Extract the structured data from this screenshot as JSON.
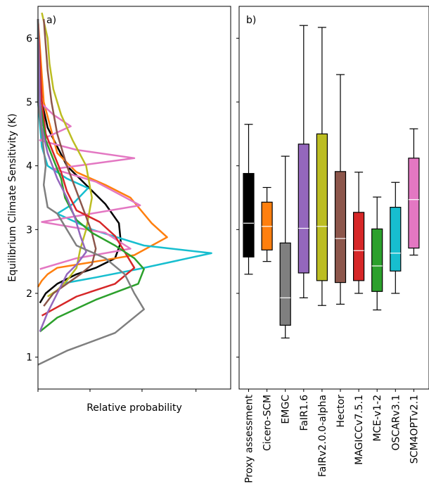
{
  "chart_data": [
    {
      "type": "line",
      "panel_label": "a)",
      "xlabel": "Relative probability",
      "ylabel": "Equilibrium Climate Sensitivity (K)",
      "ylim": [
        0.5,
        6.5
      ],
      "xlim": [
        0,
        1
      ],
      "y_ticks": [
        1,
        2,
        3,
        4,
        5,
        6
      ],
      "series": [
        {
          "color": "#000000",
          "points": [
            [
              0.0,
              6.3
            ],
            [
              0.02,
              5.0
            ],
            [
              0.05,
              4.6
            ],
            [
              0.1,
              4.3
            ],
            [
              0.15,
              4.0
            ],
            [
              0.25,
              3.7
            ],
            [
              0.35,
              3.4
            ],
            [
              0.42,
              3.1
            ],
            [
              0.43,
              2.8
            ],
            [
              0.4,
              2.55
            ],
            [
              0.3,
              2.4
            ],
            [
              0.2,
              2.3
            ],
            [
              0.1,
              2.15
            ],
            [
              0.04,
              2.0
            ],
            [
              0.01,
              1.85
            ]
          ]
        },
        {
          "color": "#ff7f0e",
          "points": [
            [
              0.0,
              6.3
            ],
            [
              0.03,
              5.0
            ],
            [
              0.1,
              4.2
            ],
            [
              0.2,
              3.9
            ],
            [
              0.35,
              3.7
            ],
            [
              0.48,
              3.5
            ],
            [
              0.59,
              3.1
            ],
            [
              0.67,
              2.88
            ],
            [
              0.5,
              2.6
            ],
            [
              0.3,
              2.5
            ],
            [
              0.1,
              2.4
            ],
            [
              0.05,
              2.3
            ],
            [
              0.02,
              2.2
            ],
            [
              0.0,
              2.1
            ]
          ]
        },
        {
          "color": "#17becf",
          "points": [
            [
              0.0,
              6.3
            ],
            [
              0.0,
              5.0
            ],
            [
              0.02,
              4.3
            ],
            [
              0.05,
              4.0
            ],
            [
              0.15,
              3.8
            ],
            [
              0.26,
              3.65
            ],
            [
              0.18,
              3.4
            ],
            [
              0.1,
              3.25
            ],
            [
              0.28,
              3.0
            ],
            [
              0.55,
              2.75
            ],
            [
              0.9,
              2.63
            ],
            [
              0.52,
              2.38
            ],
            [
              0.3,
              2.25
            ],
            [
              0.12,
              2.15
            ]
          ]
        },
        {
          "color": "#e377c2",
          "points": [
            [
              0.0,
              6.3
            ],
            [
              0.01,
              5.0
            ],
            [
              0.08,
              4.8
            ],
            [
              0.17,
              4.62
            ],
            [
              0.01,
              4.4
            ],
            [
              0.2,
              4.25
            ],
            [
              0.5,
              4.12
            ],
            [
              0.08,
              3.95
            ],
            [
              0.3,
              3.75
            ],
            [
              0.53,
              3.38
            ],
            [
              0.02,
              3.12
            ],
            [
              0.35,
              2.95
            ],
            [
              0.48,
              2.7
            ],
            [
              0.2,
              2.55
            ],
            [
              0.01,
              2.38
            ]
          ]
        },
        {
          "color": "#bcbd22",
          "points": [
            [
              0.02,
              6.4
            ],
            [
              0.05,
              6.0
            ],
            [
              0.06,
              5.6
            ],
            [
              0.08,
              5.2
            ],
            [
              0.12,
              4.8
            ],
            [
              0.18,
              4.4
            ],
            [
              0.25,
              4.0
            ],
            [
              0.28,
              3.5
            ],
            [
              0.25,
              3.0
            ],
            [
              0.22,
              2.7
            ],
            [
              0.2,
              2.4
            ],
            [
              0.15,
              2.2
            ],
            [
              0.1,
              2.05
            ],
            [
              0.05,
              1.95
            ]
          ]
        },
        {
          "color": "#8c564b",
          "points": [
            [
              0.03,
              6.3
            ],
            [
              0.05,
              5.5
            ],
            [
              0.07,
              5.0
            ],
            [
              0.1,
              4.5
            ],
            [
              0.15,
              4.0
            ],
            [
              0.2,
              3.6
            ],
            [
              0.25,
              3.2
            ],
            [
              0.28,
              2.95
            ],
            [
              0.3,
              2.7
            ],
            [
              0.28,
              2.45
            ],
            [
              0.22,
              2.3
            ],
            [
              0.15,
              2.15
            ],
            [
              0.08,
              2.0
            ],
            [
              0.03,
              1.8
            ]
          ]
        },
        {
          "color": "#d62728",
          "points": [
            [
              0.0,
              6.3
            ],
            [
              0.02,
              5.0
            ],
            [
              0.04,
              4.5
            ],
            [
              0.08,
              4.2
            ],
            [
              0.12,
              3.9
            ],
            [
              0.15,
              3.6
            ],
            [
              0.2,
              3.3
            ],
            [
              0.32,
              3.12
            ],
            [
              0.4,
              2.9
            ],
            [
              0.45,
              2.65
            ],
            [
              0.5,
              2.4
            ],
            [
              0.4,
              2.15
            ],
            [
              0.2,
              1.95
            ],
            [
              0.02,
              1.65
            ]
          ]
        },
        {
          "color": "#2ca02c",
          "points": [
            [
              0.0,
              6.3
            ],
            [
              0.01,
              5.0
            ],
            [
              0.04,
              4.4
            ],
            [
              0.08,
              4.1
            ],
            [
              0.12,
              3.8
            ],
            [
              0.14,
              3.5
            ],
            [
              0.2,
              3.15
            ],
            [
              0.28,
              2.95
            ],
            [
              0.4,
              2.75
            ],
            [
              0.5,
              2.55
            ],
            [
              0.55,
              2.38
            ],
            [
              0.52,
              2.15
            ],
            [
              0.3,
              1.9
            ],
            [
              0.1,
              1.62
            ],
            [
              0.01,
              1.4
            ]
          ]
        },
        {
          "color": "#9467bd",
          "points": [
            [
              0.0,
              6.3
            ],
            [
              0.01,
              5.0
            ],
            [
              0.02,
              4.6
            ],
            [
              0.05,
              4.2
            ],
            [
              0.1,
              3.8
            ],
            [
              0.15,
              3.5
            ],
            [
              0.19,
              3.2
            ],
            [
              0.22,
              2.9
            ],
            [
              0.25,
              2.65
            ],
            [
              0.2,
              2.45
            ],
            [
              0.15,
              2.3
            ],
            [
              0.1,
              2.0
            ],
            [
              0.05,
              1.7
            ],
            [
              0.01,
              1.4
            ]
          ]
        },
        {
          "color": "#7f7f7f",
          "points": [
            [
              0.0,
              6.3
            ],
            [
              0.0,
              5.0
            ],
            [
              0.02,
              4.5
            ],
            [
              0.04,
              4.0
            ],
            [
              0.03,
              3.7
            ],
            [
              0.05,
              3.35
            ],
            [
              0.1,
              3.25
            ],
            [
              0.15,
              3.0
            ],
            [
              0.2,
              2.75
            ],
            [
              0.35,
              2.55
            ],
            [
              0.45,
              2.3
            ],
            [
              0.5,
              2.0
            ],
            [
              0.55,
              1.75
            ],
            [
              0.4,
              1.38
            ],
            [
              0.15,
              1.1
            ],
            [
              0.0,
              0.88
            ]
          ]
        }
      ]
    },
    {
      "type": "box",
      "panel_label": "b)",
      "ylim": [
        0.5,
        6.5
      ],
      "boxes": [
        {
          "name": "Proxy assessment",
          "color": "#000000",
          "whislo": 2.3,
          "q1": 2.57,
          "med": 3.1,
          "q3": 3.88,
          "whishi": 4.65
        },
        {
          "name": "Cicero-SCM",
          "color": "#ff7f0e",
          "whislo": 2.5,
          "q1": 2.68,
          "med": 3.05,
          "q3": 3.43,
          "whishi": 3.66
        },
        {
          "name": "EMGC",
          "color": "#7f7f7f",
          "whislo": 1.3,
          "q1": 1.5,
          "med": 1.93,
          "q3": 2.79,
          "whishi": 4.15
        },
        {
          "name": "FaIR1.6",
          "color": "#9467bd",
          "whislo": 1.93,
          "q1": 2.32,
          "med": 3.02,
          "q3": 4.34,
          "whishi": 6.2
        },
        {
          "name": "FaIRv2.0.0-alpha",
          "color": "#bcbd22",
          "whislo": 1.81,
          "q1": 2.2,
          "med": 3.05,
          "q3": 4.5,
          "whishi": 6.17
        },
        {
          "name": "Hector",
          "color": "#8c564b",
          "whislo": 1.83,
          "q1": 2.17,
          "med": 2.86,
          "q3": 3.91,
          "whishi": 5.43
        },
        {
          "name": "MAGICCv7.5.1",
          "color": "#d62728",
          "whislo": 2.0,
          "q1": 2.2,
          "med": 2.67,
          "q3": 3.27,
          "whishi": 3.9
        },
        {
          "name": "MCE-v1-2",
          "color": "#2ca02c",
          "whislo": 1.74,
          "q1": 2.03,
          "med": 2.43,
          "q3": 3.01,
          "whishi": 3.51
        },
        {
          "name": "OSCARv3.1",
          "color": "#17becf",
          "whislo": 2.0,
          "q1": 2.35,
          "med": 2.63,
          "q3": 3.35,
          "whishi": 3.74
        },
        {
          "name": "SCM4OPTv2.1",
          "color": "#e377c2",
          "whislo": 2.6,
          "q1": 2.71,
          "med": 3.47,
          "q3": 4.12,
          "whishi": 4.58
        }
      ]
    }
  ]
}
